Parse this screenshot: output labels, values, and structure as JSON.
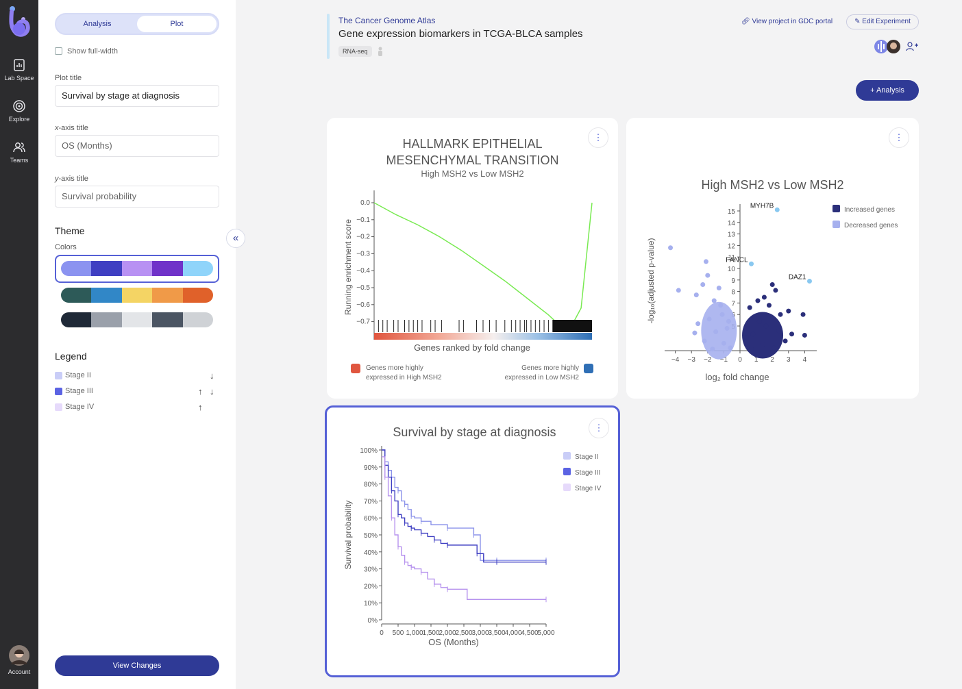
{
  "nav": {
    "items": [
      {
        "label": "Lab Space",
        "icon": "lab-space-icon"
      },
      {
        "label": "Explore",
        "icon": "explore-icon"
      },
      {
        "label": "Teams",
        "icon": "teams-icon"
      }
    ],
    "account_label": "Account"
  },
  "panel": {
    "tabs": {
      "analysis": "Analysis",
      "plot": "Plot"
    },
    "show_full_width": "Show full-width",
    "plot_title_label": "Plot title",
    "plot_title_value": "Survival by stage at diagnosis",
    "x_axis_label_italic": "x",
    "x_axis_label_rest": "-axis title",
    "x_axis_value": "OS (Months)",
    "y_axis_label_italic": "y",
    "y_axis_label_rest": "-axis title",
    "y_axis_value": "Survival probability",
    "theme_heading": "Theme",
    "colors_label": "Colors",
    "palettes": [
      [
        "#8b93f0",
        "#3f3fc2",
        "#b891f3",
        "#7032c9",
        "#8fd4fa"
      ],
      [
        "#2d5a58",
        "#3187c7",
        "#f4d464",
        "#f09a48",
        "#e0612a"
      ],
      [
        "#1f2937",
        "#9aa0aa",
        "#e3e5e8",
        "#4b5563",
        "#cfd2d6"
      ]
    ],
    "legend_heading": "Legend",
    "legend_items": [
      {
        "label": "Stage II",
        "color": "#c9cdf7"
      },
      {
        "label": "Stage III",
        "color": "#5b63e3"
      },
      {
        "label": "Stage IV",
        "color": "#e6dafb"
      }
    ],
    "view_changes": "View Changes"
  },
  "header": {
    "project": "The Cancer Genome Atlas",
    "title": "Gene expression biomarkers in TCGA-BLCA samples",
    "tag": "RNA-seq",
    "gdc_link": "View project in GDC portal",
    "edit_button": "Edit Experiment",
    "add_analysis": "+ Analysis"
  },
  "gsea": {
    "title_line1": "HALLMARK EPITHELIAL",
    "title_line2": "MESENCHYMAL TRANSITION",
    "subtitle": "High MSH2 vs Low MSH2",
    "ylabel": "Running enrichment score",
    "xlabel": "Genes ranked by fold change",
    "yticks": [
      "0.0",
      "−0.1",
      "−0.2",
      "−0.3",
      "−0.4",
      "−0.5",
      "−0.6",
      "−0.7"
    ],
    "legend_left": [
      "Genes more highly",
      "expressed in High MSH2"
    ],
    "legend_right": [
      "Genes more highly",
      "expressed in Low MSH2"
    ],
    "color_high": "#e0563f",
    "color_low": "#2f6fb5"
  },
  "volcano": {
    "title": "High MSH2 vs Low MSH2",
    "ylabel": "-log₁₀(adjusted p-value)",
    "xlabel": "log₂ fold change",
    "xticks": [
      "−4",
      "−3",
      "−2",
      "−1",
      "0",
      "1",
      "2",
      "3",
      "4"
    ],
    "yticks": [
      "15",
      "14",
      "13",
      "12",
      "11",
      "10",
      "9",
      "8",
      "7",
      "6",
      "5"
    ],
    "legend": [
      {
        "label": "Increased genes",
        "color": "#2b2f7a"
      },
      {
        "label": "Decreased genes",
        "color": "#a6b0ee"
      }
    ],
    "labels": [
      "MYH7B",
      "FANCL",
      "DAZ1"
    ]
  },
  "survival": {
    "title": "Survival by stage at diagnosis",
    "ylabel": "Survival probability",
    "xlabel": "OS (Months)",
    "yticks": [
      "100%",
      "90%",
      "80%",
      "70%",
      "60%",
      "50%",
      "40%",
      "30%",
      "20%",
      "10%",
      "0%"
    ],
    "xticks": [
      "0",
      "500",
      "1,000",
      "1,500",
      "2,000",
      "2,500",
      "3,000",
      "3,500",
      "4,000",
      "4,500",
      "5,000"
    ]
  },
  "chart_data": [
    {
      "type": "line",
      "title": "HALLMARK EPITHELIAL MESENCHYMAL TRANSITION",
      "subtitle": "High MSH2 vs Low MSH2",
      "xlabel": "Genes ranked by fold change",
      "ylabel": "Running enrichment score",
      "ylim": [
        -0.75,
        0
      ],
      "x": [
        0,
        0.1,
        0.2,
        0.3,
        0.4,
        0.5,
        0.6,
        0.7,
        0.8,
        0.85,
        0.9,
        0.95,
        1.0
      ],
      "y": [
        0,
        -0.07,
        -0.13,
        -0.2,
        -0.28,
        -0.37,
        -0.46,
        -0.56,
        -0.66,
        -0.72,
        -0.74,
        -0.62,
        0
      ]
    },
    {
      "type": "scatter",
      "title": "High MSH2 vs Low MSH2",
      "xlabel": "log₂ fold change",
      "ylabel": "-log₁₀(adjusted p-value)",
      "xlim": [
        -4.5,
        4.5
      ],
      "series": [
        {
          "name": "Increased genes",
          "points": [
            [
              1.1,
              7.2
            ],
            [
              1.5,
              7.5
            ],
            [
              2.0,
              8.6
            ],
            [
              2.2,
              8.1
            ],
            [
              1.8,
              6.8
            ],
            [
              2.5,
              6.0
            ],
            [
              3.0,
              6.3
            ],
            [
              3.9,
              6.0
            ],
            [
              4.0,
              4.2
            ],
            [
              1.2,
              5.4
            ],
            [
              0.6,
              6.6
            ],
            [
              0.8,
              4.3
            ],
            [
              1.6,
              5.0
            ],
            [
              2.4,
              4.6
            ],
            [
              3.2,
              4.3
            ],
            [
              0.7,
              3.0
            ],
            [
              1.4,
              3.4
            ],
            [
              2.1,
              3.1
            ],
            [
              2.8,
              3.7
            ],
            [
              0.4,
              4.0
            ]
          ]
        },
        {
          "name": "Decreased genes",
          "points": [
            [
              -4.3,
              11.8
            ],
            [
              -3.8,
              8.1
            ],
            [
              -2.1,
              10.6
            ],
            [
              -2.0,
              9.4
            ],
            [
              -2.7,
              7.7
            ],
            [
              -2.3,
              8.6
            ],
            [
              -1.6,
              7.2
            ],
            [
              -1.1,
              6.0
            ],
            [
              -2.8,
              4.4
            ],
            [
              -1.5,
              4.5
            ],
            [
              -1.0,
              3.5
            ],
            [
              -2.2,
              3.7
            ],
            [
              -0.8,
              4.8
            ],
            [
              -1.9,
              5.6
            ],
            [
              -1.3,
              8.3
            ],
            [
              -0.6,
              3.1
            ],
            [
              -1.7,
              3.0
            ],
            [
              -2.6,
              5.2
            ],
            [
              -1.2,
              6.8
            ],
            [
              -0.7,
              5.4
            ]
          ]
        }
      ],
      "annotations": [
        {
          "label": "MYH7B",
          "x": 2.3,
          "y": 15.1
        },
        {
          "label": "FANCL",
          "x": 0.7,
          "y": 10.4
        },
        {
          "label": "DAZ1",
          "x": 4.3,
          "y": 8.9
        }
      ]
    },
    {
      "type": "line",
      "title": "Survival by stage at diagnosis",
      "xlabel": "OS (Months)",
      "ylabel": "Survival probability",
      "xlim": [
        0,
        5000
      ],
      "ylim": [
        0,
        1
      ],
      "series": [
        {
          "name": "Stage II",
          "color": "#8c93ea",
          "x": [
            0,
            100,
            200,
            300,
            400,
            500,
            600,
            700,
            800,
            900,
            1000,
            1200,
            1500,
            2000,
            2300,
            2800,
            3000,
            3500,
            5000
          ],
          "y": [
            1.0,
            0.93,
            0.88,
            0.84,
            0.78,
            0.76,
            0.7,
            0.68,
            0.65,
            0.61,
            0.6,
            0.58,
            0.56,
            0.54,
            0.54,
            0.5,
            0.35,
            0.35,
            0.35
          ]
        },
        {
          "name": "Stage III",
          "color": "#3f3fc2",
          "x": [
            0,
            100,
            200,
            300,
            400,
            500,
            600,
            700,
            800,
            900,
            1000,
            1200,
            1400,
            1600,
            1800,
            2000,
            2500,
            2900,
            3100,
            3500,
            5000
          ],
          "y": [
            1.0,
            0.91,
            0.84,
            0.76,
            0.7,
            0.62,
            0.6,
            0.57,
            0.55,
            0.54,
            0.53,
            0.51,
            0.49,
            0.47,
            0.45,
            0.44,
            0.44,
            0.39,
            0.34,
            0.34,
            0.34
          ]
        },
        {
          "name": "Stage IV",
          "color": "#b692ee",
          "x": [
            0,
            100,
            200,
            300,
            400,
            500,
            600,
            700,
            800,
            900,
            1000,
            1200,
            1400,
            1600,
            1800,
            2000,
            2600,
            5000
          ],
          "y": [
            0.96,
            0.84,
            0.73,
            0.6,
            0.5,
            0.43,
            0.38,
            0.34,
            0.32,
            0.31,
            0.3,
            0.28,
            0.24,
            0.21,
            0.19,
            0.18,
            0.12,
            0.12
          ]
        }
      ]
    }
  ]
}
